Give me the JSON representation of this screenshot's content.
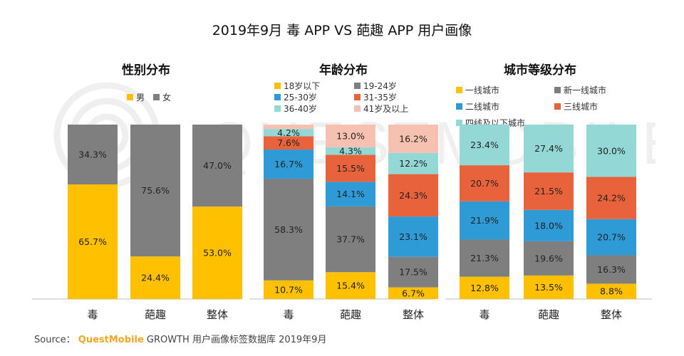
{
  "title": "2019年9月 毒 APP VS 葩趣 APP 用户画像",
  "source": {
    "prefix": "Source：",
    "brand": "QuestMobile",
    "text": "GROWTH 用户画像标签数据库 2019年9月"
  },
  "watermark_text": "QUESTMOBILE",
  "colors": {
    "yellow": "#FFC000",
    "gray": "#7F7F7F",
    "blue": "#2F9BD6",
    "orange": "#E8623C",
    "teal": "#93D8D5",
    "pink": "#F6C1B1"
  },
  "chart_data": [
    {
      "type": "bar",
      "stacked": true,
      "title": "性别分布",
      "categories": [
        "毒",
        "葩趣",
        "整体"
      ],
      "legend_columns": 2,
      "series": [
        {
          "name": "男",
          "color": "#FFC000",
          "values": [
            65.7,
            24.4,
            53.0
          ],
          "labels": [
            "65.7%",
            "24.4%",
            "53.0%"
          ]
        },
        {
          "name": "女",
          "color": "#7F7F7F",
          "values": [
            34.3,
            75.6,
            47.0
          ],
          "labels": [
            "34.3%",
            "75.6%",
            "47.0%"
          ]
        }
      ],
      "ylim": [
        0,
        100
      ]
    },
    {
      "type": "bar",
      "stacked": true,
      "title": "年龄分布",
      "categories": [
        "毒",
        "葩趣",
        "整体"
      ],
      "legend_columns": 2,
      "series": [
        {
          "name": "18岁以下",
          "color": "#FFC000",
          "values": [
            10.7,
            15.4,
            6.7
          ],
          "labels": [
            "10.7%",
            "15.4%",
            "6.7%"
          ]
        },
        {
          "name": "19-24岁",
          "color": "#7F7F7F",
          "values": [
            58.3,
            37.7,
            17.5
          ],
          "labels": [
            "58.3%",
            "37.7%",
            "17.5%"
          ]
        },
        {
          "name": "25-30岁",
          "color": "#2F9BD6",
          "values": [
            16.7,
            14.1,
            23.1
          ],
          "labels": [
            "16.7%",
            "14.1%",
            "23.1%"
          ]
        },
        {
          "name": "31-35岁",
          "color": "#E8623C",
          "values": [
            7.6,
            15.5,
            24.3
          ],
          "labels": [
            "7.6%",
            "15.5%",
            "24.3%"
          ]
        },
        {
          "name": "36-40岁",
          "color": "#93D8D5",
          "values": [
            4.2,
            4.3,
            12.2
          ],
          "labels": [
            "4.2%",
            "4.3%",
            "12.2%"
          ]
        },
        {
          "name": "41岁及以上",
          "color": "#F6C1B1",
          "values": [
            2.5,
            13.0,
            16.2
          ],
          "labels": [
            "",
            "13.0%",
            "16.2%"
          ]
        }
      ],
      "ylim": [
        0,
        100
      ]
    },
    {
      "type": "bar",
      "stacked": true,
      "title": "城市等级分布",
      "categories": [
        "毒",
        "葩趣",
        "整体"
      ],
      "legend_columns": 2,
      "series": [
        {
          "name": "一线城市",
          "color": "#FFC000",
          "values": [
            12.8,
            13.5,
            8.8
          ],
          "labels": [
            "12.8%",
            "13.5%",
            "8.8%"
          ]
        },
        {
          "name": "新一线城市",
          "color": "#7F7F7F",
          "values": [
            21.3,
            19.6,
            16.3
          ],
          "labels": [
            "21.3%",
            "19.6%",
            "16.3%"
          ]
        },
        {
          "name": "二线城市",
          "color": "#2F9BD6",
          "values": [
            21.9,
            18.0,
            20.7
          ],
          "labels": [
            "21.9%",
            "18.0%",
            "20.7%"
          ]
        },
        {
          "name": "三线城市",
          "color": "#E8623C",
          "values": [
            20.7,
            21.5,
            24.2
          ],
          "labels": [
            "20.7%",
            "21.5%",
            "24.2%"
          ]
        },
        {
          "name": "四线及以下城市",
          "color": "#93D8D5",
          "values": [
            23.4,
            27.4,
            30.0
          ],
          "labels": [
            "23.4%",
            "27.4%",
            "30.0%"
          ]
        }
      ],
      "ylim": [
        0,
        100
      ]
    }
  ]
}
